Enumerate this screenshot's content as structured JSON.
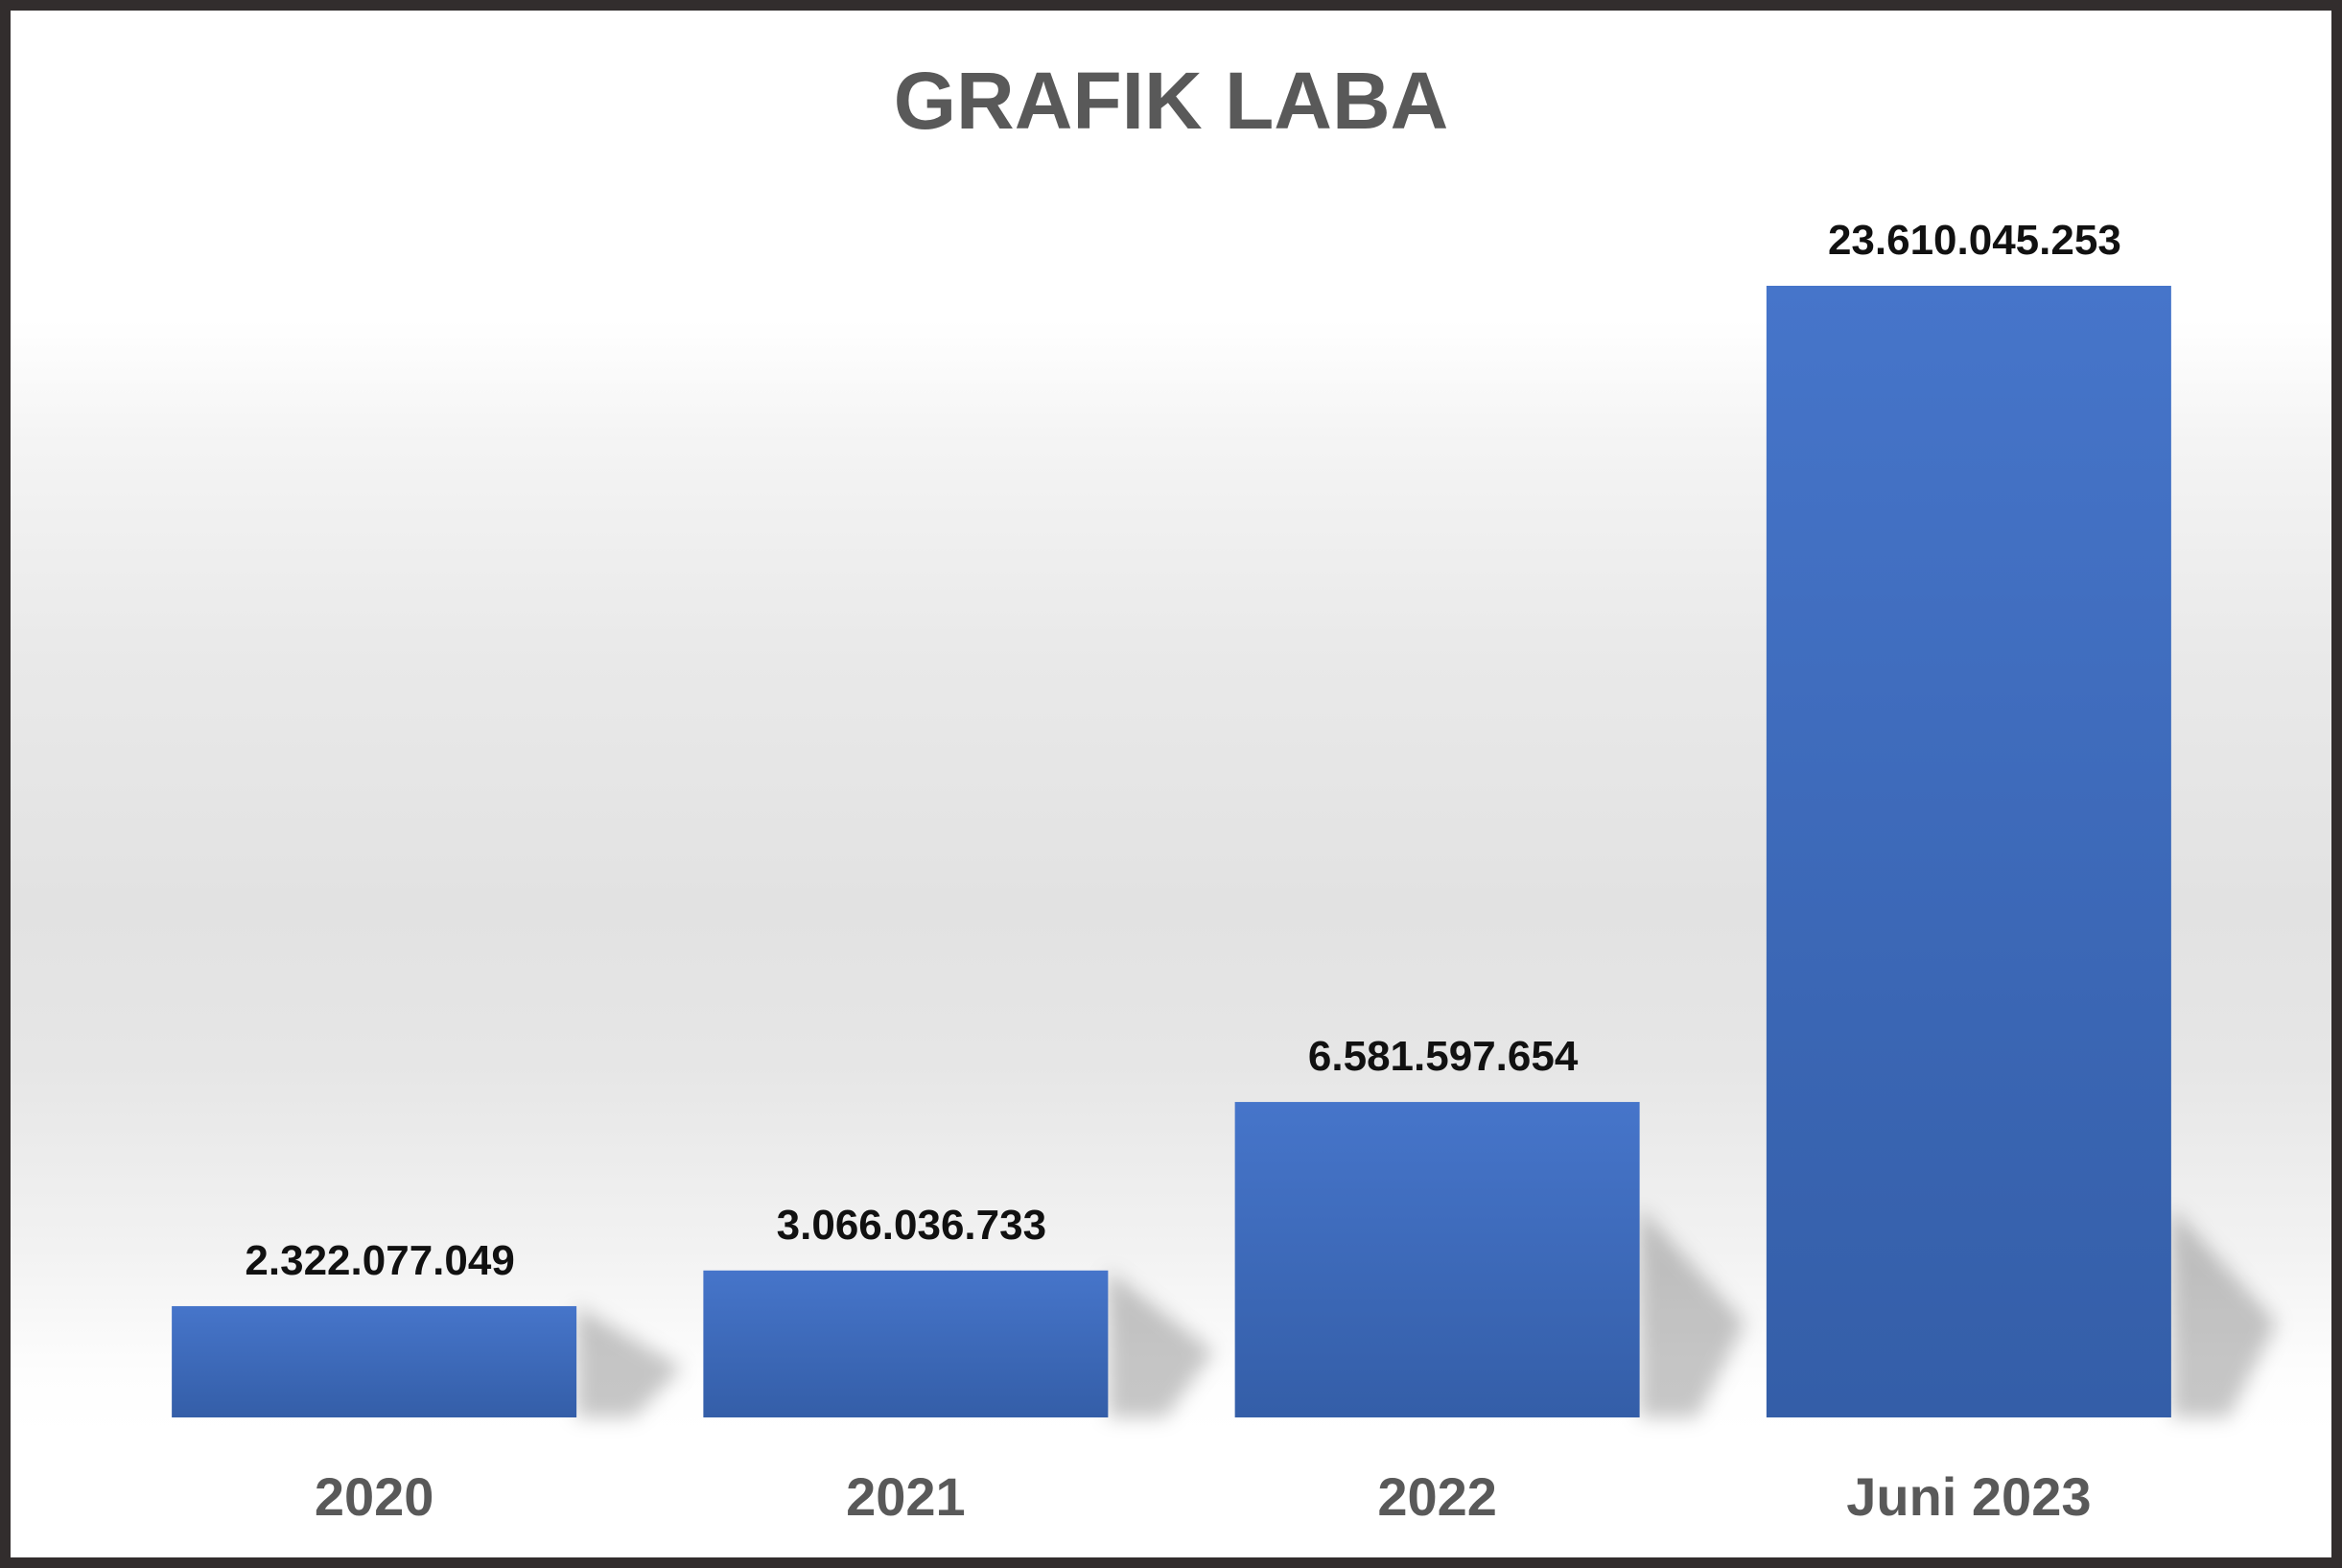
{
  "chart_data": {
    "type": "bar",
    "title": "GRAFIK LABA",
    "xlabel": "",
    "ylabel": "",
    "categories": [
      "2020",
      "2021",
      "2022",
      "Juni 2023"
    ],
    "values": [
      2322077049,
      3066036733,
      6581597654,
      23610045253
    ],
    "data_labels": [
      "2.322.077.049",
      "3.066.036.733",
      "6.581.597.654",
      "23.610.045.253"
    ],
    "ylim": [
      0,
      23610045253
    ],
    "grid": false,
    "legend": "none",
    "colors": {
      "bar_top": "#4675ca",
      "bar_bottom": "#345ea8",
      "title": "#595959",
      "tick_label": "#595959",
      "value_label": "#111111",
      "border": "#322d2d"
    }
  }
}
